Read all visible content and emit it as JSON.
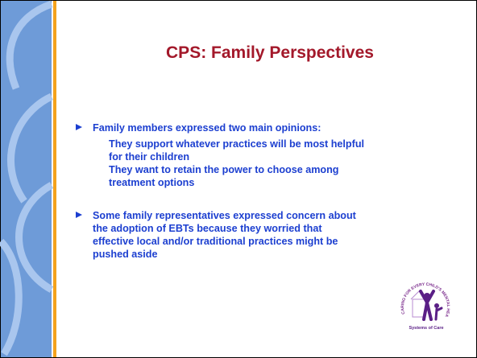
{
  "slide": {
    "title": "CPS: Family Perspectives",
    "bullets": [
      {
        "lines": [
          "Family members expressed two main opinions:"
        ],
        "subitems": [
          [
            "They support whatever practices will be most helpful",
            "for their children"
          ],
          [
            "They want to retain the power to choose among",
            "treatment options"
          ]
        ]
      },
      {
        "lines": [
          "Some family representatives expressed concern about",
          "the adoption of EBTs because they worried that",
          "effective local and/or traditional practices might be",
          "pushed aside"
        ]
      }
    ],
    "logo": {
      "arc_text": "CARING FOR EVERY CHILD'S MENTAL HEALTH",
      "caption": "Systems of Care"
    }
  }
}
